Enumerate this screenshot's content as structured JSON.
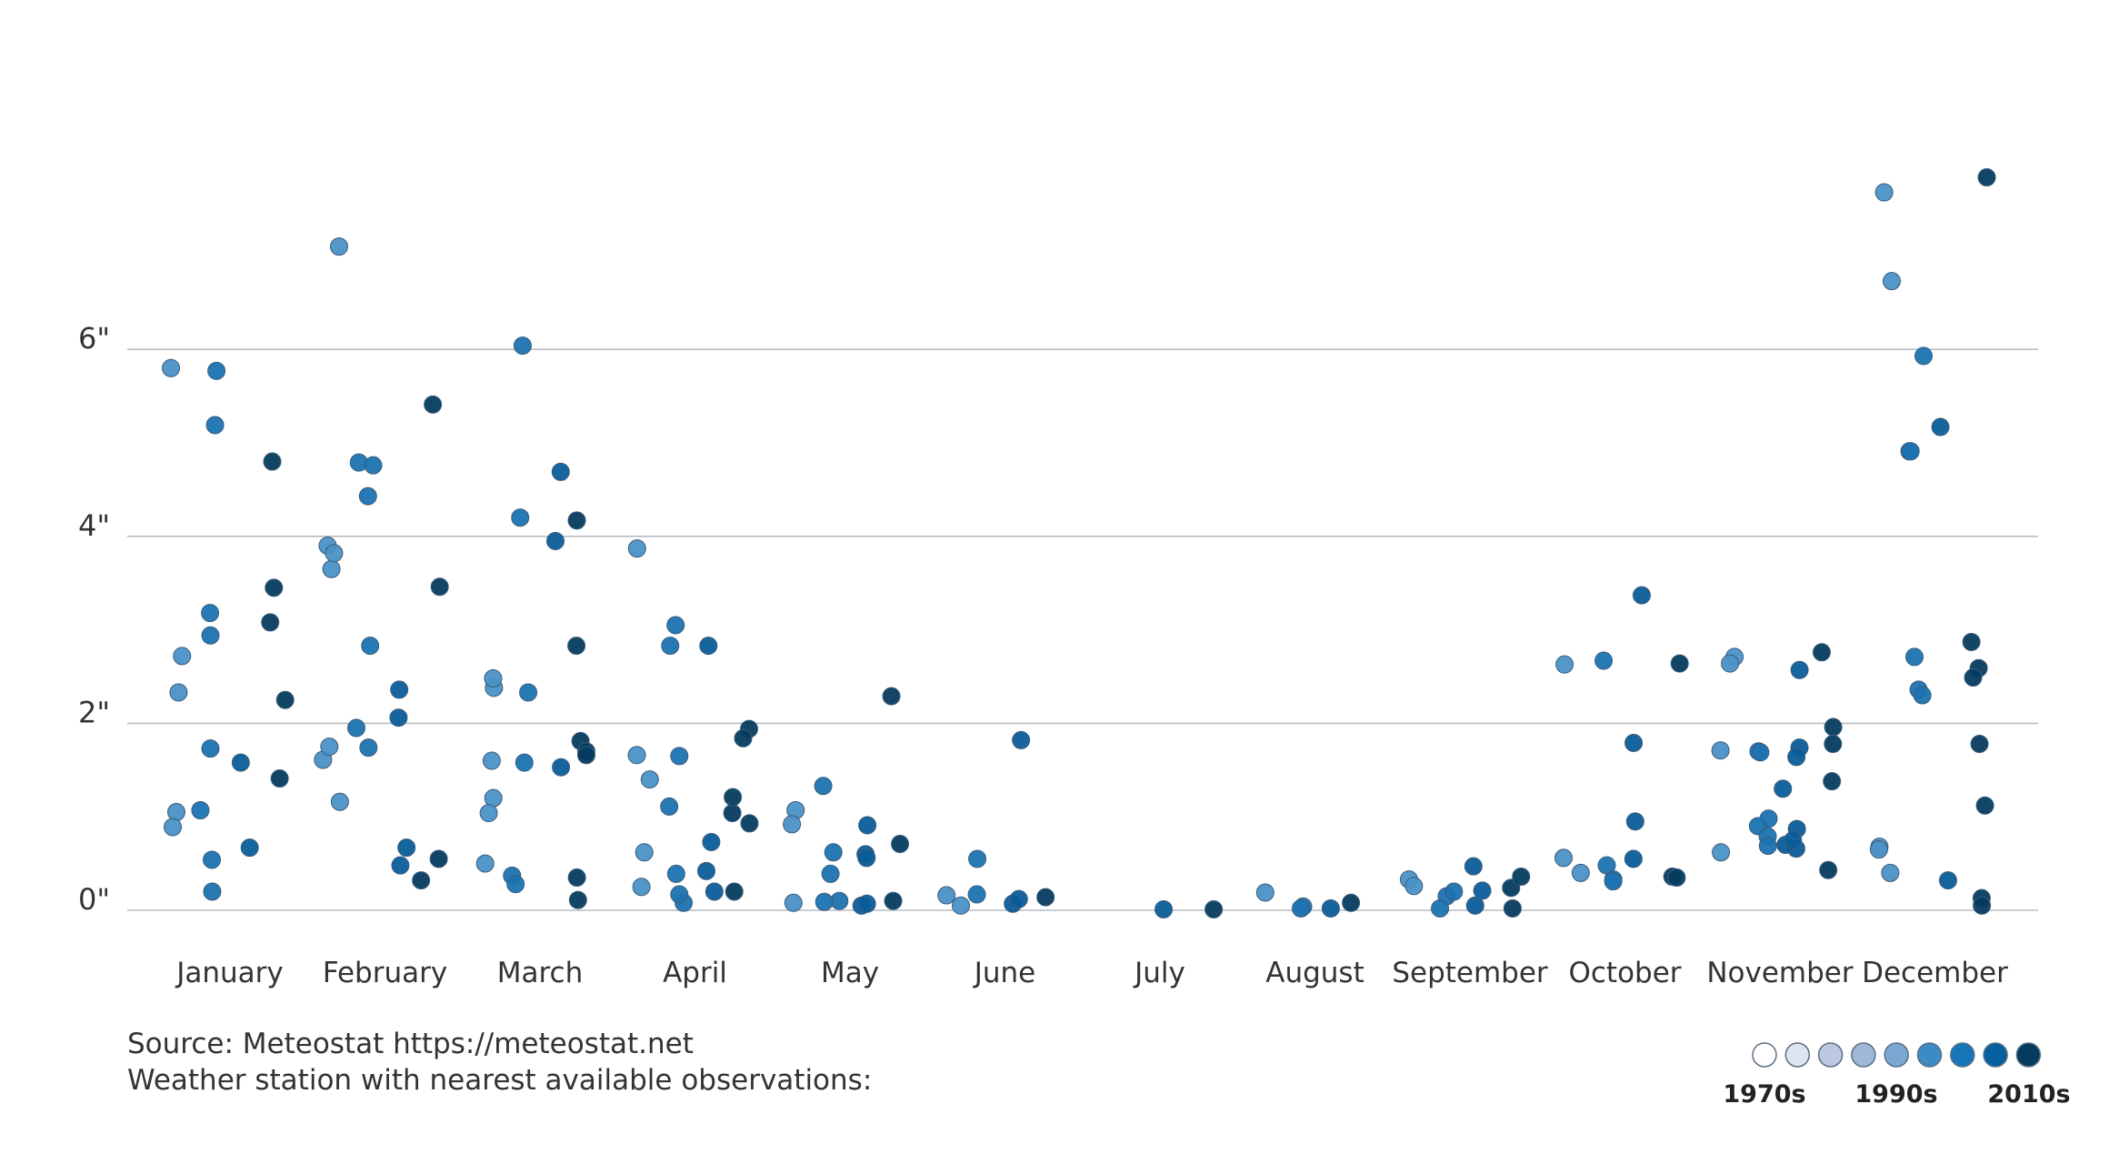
{
  "chart_data": {
    "type": "scatter",
    "y_ticks": [
      "0\"",
      "2\"",
      "4\"",
      "6\""
    ],
    "y_tick_values": [
      0,
      2,
      4,
      6
    ],
    "ylim": [
      0,
      8.1
    ],
    "grid": true,
    "legend_placement": "bottom-right",
    "categories": [
      "January",
      "February",
      "March",
      "April",
      "May",
      "June",
      "July",
      "August",
      "September",
      "October",
      "November",
      "December"
    ],
    "decade_legend": {
      "labels": [
        "1970s",
        "1990s",
        "2010s"
      ],
      "swatches": [
        "#ffffff",
        "#dde3ef",
        "#bcc8e0",
        "#9eb8d8",
        "#7aa8d2",
        "#3d8bc4",
        "#1677b8",
        "#085f9e",
        "#053b5e"
      ]
    },
    "colors": [
      "#4b91c6",
      "#1c73b1",
      "#0b5d99",
      "#053b5e"
    ],
    "series": [
      {
        "category": "January",
        "points": [
          [
            5.8,
            0
          ],
          [
            2.72,
            0
          ],
          [
            2.33,
            0
          ],
          [
            1.05,
            0
          ],
          [
            0.89,
            0
          ],
          [
            5.77,
            1
          ],
          [
            5.19,
            1
          ],
          [
            3.18,
            1
          ],
          [
            2.94,
            1
          ],
          [
            1.73,
            1
          ],
          [
            1.07,
            1
          ],
          [
            0.54,
            1
          ],
          [
            0.2,
            1
          ],
          [
            1.58,
            2
          ],
          [
            0.67,
            2
          ],
          [
            4.8,
            3
          ],
          [
            3.45,
            3
          ],
          [
            3.08,
            3
          ],
          [
            2.25,
            3
          ],
          [
            1.41,
            3
          ]
        ]
      },
      {
        "category": "February",
        "points": [
          [
            7.1,
            0
          ],
          [
            3.65,
            0
          ],
          [
            3.9,
            0
          ],
          [
            3.82,
            0
          ],
          [
            1.61,
            0
          ],
          [
            1.75,
            0
          ],
          [
            1.16,
            0
          ],
          [
            4.79,
            1
          ],
          [
            4.76,
            1
          ],
          [
            4.43,
            1
          ],
          [
            2.83,
            1
          ],
          [
            1.95,
            1
          ],
          [
            1.74,
            1
          ],
          [
            0.67,
            2
          ],
          [
            2.36,
            2
          ],
          [
            2.06,
            2
          ],
          [
            0.48,
            2
          ],
          [
            5.41,
            3
          ],
          [
            3.46,
            3
          ],
          [
            0.55,
            3
          ],
          [
            0.32,
            3
          ]
        ]
      },
      {
        "category": "March",
        "points": [
          [
            2.38,
            0
          ],
          [
            2.48,
            0
          ],
          [
            1.6,
            0
          ],
          [
            1.2,
            0
          ],
          [
            1.04,
            0
          ],
          [
            0.5,
            0
          ],
          [
            6.04,
            1
          ],
          [
            4.2,
            1
          ],
          [
            2.33,
            1
          ],
          [
            1.58,
            1
          ],
          [
            0.37,
            1
          ],
          [
            0.28,
            1
          ],
          [
            4.69,
            2
          ],
          [
            3.95,
            2
          ],
          [
            1.53,
            2
          ],
          [
            0.35,
            3
          ],
          [
            0.11,
            3
          ],
          [
            4.17,
            3
          ],
          [
            2.83,
            3
          ],
          [
            1.81,
            3
          ],
          [
            1.7,
            3
          ],
          [
            1.66,
            3
          ]
        ]
      },
      {
        "category": "April",
        "points": [
          [
            1.4,
            0
          ],
          [
            0.62,
            0
          ],
          [
            1.66,
            0
          ],
          [
            3.87,
            0
          ],
          [
            0.25,
            0
          ],
          [
            3.05,
            1
          ],
          [
            2.83,
            1
          ],
          [
            1.65,
            1
          ],
          [
            1.11,
            1
          ],
          [
            0.39,
            1
          ],
          [
            0.08,
            1
          ],
          [
            0.17,
            1
          ],
          [
            2.83,
            2
          ],
          [
            0.42,
            2
          ],
          [
            0.2,
            2
          ],
          [
            0.73,
            2
          ],
          [
            1.04,
            3
          ],
          [
            0.93,
            3
          ],
          [
            1.94,
            3
          ],
          [
            1.84,
            3
          ],
          [
            1.21,
            3
          ],
          [
            0.2,
            3
          ]
        ]
      },
      {
        "category": "May",
        "points": [
          [
            0.08,
            0
          ],
          [
            1.07,
            0
          ],
          [
            0.92,
            0
          ],
          [
            1.33,
            1
          ],
          [
            0.62,
            1
          ],
          [
            0.39,
            1
          ],
          [
            0.1,
            1
          ],
          [
            0.09,
            1
          ],
          [
            0.91,
            2
          ],
          [
            0.6,
            2
          ],
          [
            0.56,
            2
          ],
          [
            0.05,
            2
          ],
          [
            0.07,
            2
          ],
          [
            0.1,
            3
          ],
          [
            0.71,
            3
          ],
          [
            2.29,
            3
          ]
        ]
      },
      {
        "category": "June",
        "points": [
          [
            0.05,
            0
          ],
          [
            0.16,
            0
          ],
          [
            0.17,
            1
          ],
          [
            0.55,
            1
          ],
          [
            1.82,
            2
          ],
          [
            0.07,
            2
          ],
          [
            0.12,
            2
          ],
          [
            0.14,
            3
          ]
        ]
      },
      {
        "category": "July",
        "points": [
          [
            0.01,
            2
          ],
          [
            0.01,
            3
          ]
        ]
      },
      {
        "category": "August",
        "points": [
          [
            0.19,
            0
          ],
          [
            0.04,
            1
          ],
          [
            0.02,
            1
          ],
          [
            0.02,
            2
          ],
          [
            0.08,
            3
          ]
        ]
      },
      {
        "category": "September",
        "points": [
          [
            0.33,
            0
          ],
          [
            0.26,
            0
          ],
          [
            0.15,
            1
          ],
          [
            0.02,
            1
          ],
          [
            0.2,
            1
          ],
          [
            0.47,
            2
          ],
          [
            0.05,
            2
          ],
          [
            0.21,
            2
          ],
          [
            0.24,
            3
          ],
          [
            0.36,
            3
          ],
          [
            0.02,
            3
          ]
        ]
      },
      {
        "category": "October",
        "points": [
          [
            2.63,
            0
          ],
          [
            0.56,
            0
          ],
          [
            0.4,
            0
          ],
          [
            2.67,
            1
          ],
          [
            0.48,
            1
          ],
          [
            0.33,
            1
          ],
          [
            0.31,
            1
          ],
          [
            1.79,
            2
          ],
          [
            3.37,
            2
          ],
          [
            0.55,
            2
          ],
          [
            0.95,
            2
          ],
          [
            0.36,
            3
          ],
          [
            0.35,
            3
          ],
          [
            2.64,
            3
          ]
        ]
      },
      {
        "category": "November",
        "points": [
          [
            2.71,
            0
          ],
          [
            2.64,
            0
          ],
          [
            1.71,
            0
          ],
          [
            0.62,
            0
          ],
          [
            1.7,
            1
          ],
          [
            0.98,
            1
          ],
          [
            0.9,
            1
          ],
          [
            1.69,
            1
          ],
          [
            0.79,
            1
          ],
          [
            0.69,
            1
          ],
          [
            1.74,
            2
          ],
          [
            0.66,
            2
          ],
          [
            2.57,
            2
          ],
          [
            2.76,
            3
          ],
          [
            0.87,
            2
          ],
          [
            0.7,
            2
          ],
          [
            1.64,
            2
          ],
          [
            1.3,
            2
          ],
          [
            0.75,
            2
          ],
          [
            1.96,
            3
          ],
          [
            1.78,
            3
          ],
          [
            1.38,
            3
          ],
          [
            0.43,
            3
          ]
        ]
      },
      {
        "category": "December",
        "points": [
          [
            7.68,
            0
          ],
          [
            6.73,
            0
          ],
          [
            0.68,
            0
          ],
          [
            0.65,
            0
          ],
          [
            0.4,
            0
          ],
          [
            4.91,
            1
          ],
          [
            4.91,
            1
          ],
          [
            5.93,
            1
          ],
          [
            2.71,
            1
          ],
          [
            2.36,
            1
          ],
          [
            2.3,
            1
          ],
          [
            5.17,
            2
          ],
          [
            2.87,
            3
          ],
          [
            2.59,
            3
          ],
          [
            2.49,
            3
          ],
          [
            7.84,
            3
          ],
          [
            0.32,
            2
          ],
          [
            0.13,
            3
          ],
          [
            0.05,
            3
          ],
          [
            1.78,
            3
          ],
          [
            1.12,
            3
          ]
        ]
      }
    ]
  },
  "source": {
    "line1": "Source: Meteostat https://meteostat.net",
    "line2": "Weather station with nearest available observations:"
  }
}
